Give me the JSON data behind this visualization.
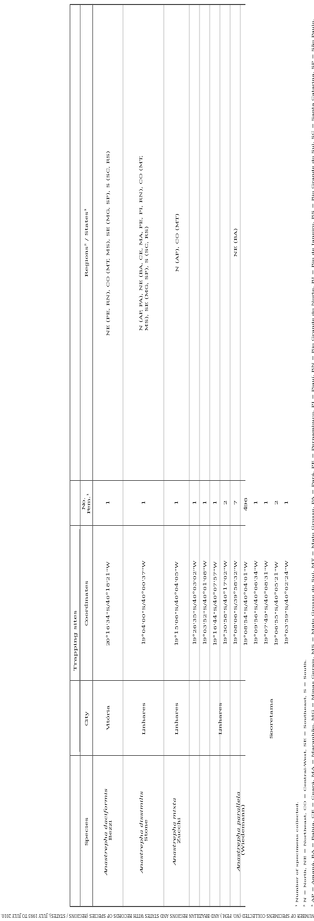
{
  "title": "NUMBER OF SPECIMENS COLLECTED (NO. FEM.) AND BRAZILIAN REGIONS AND STATES WITH RECORDS OF SPECIES (REGIONS / STATES), JULY 1993 TO JULY 2010.",
  "col_header_trapping": "Trapping sites",
  "col_headers": [
    "Species",
    "City",
    "Coordinates",
    "No.\nFem.¹",
    "Regions² / States³"
  ],
  "rows": [
    {
      "species_it": "Anastrepha daciformis",
      "author": " Bezzi",
      "city": "Vitória",
      "coord": "20°16'34\"S/40°18'21\"W",
      "nf": "1",
      "region": "NE (PE, RN), CO (MT, MS), SE (MG, SP), S (SC, RS)"
    },
    {
      "species_it": "Anastrepha dissimilis",
      "author": " Stone",
      "city": "Linhares",
      "coord": "19°04'00\"S/40°00'37\"W",
      "nf": "1",
      "region": "N (AP, PA), NE (BA, CE, MA, PE, PI, RN), CO (MT,\nMS), SE (MG, SP), S (SC, RS)"
    },
    {
      "species_it": "Anastrepha mixta",
      "author": " Zucchi",
      "city": "Linhares",
      "coord": "19°15'06\"S/40°04'05\"W",
      "nf": "1",
      "region": "N (AP), CO (MT)"
    },
    {
      "species_it": "Anastrepha parallela",
      "author": " (Wiedemann)",
      "city": "",
      "coord": "19°26'35\"S/40°03'02\"W",
      "nf": "1",
      "region": ""
    },
    {
      "species_it": "",
      "author": "",
      "city": "",
      "coord": "19°03'52\"S/40°01'08\"W",
      "nf": "1",
      "region": ""
    },
    {
      "species_it": "",
      "author": "",
      "city": "",
      "coord": "19°16'44\"S/40°07'57\"W",
      "nf": "1",
      "region": ""
    },
    {
      "species_it": "",
      "author": "",
      "city": "Linhares",
      "coord": "19°30'58\"S/40°17'02\"W",
      "nf": "2",
      "region": "NE (BA)"
    },
    {
      "species_it": "",
      "author": "",
      "city": "",
      "coord": "19°08'06\"S/39°58'32\"W",
      "nf": "7",
      "region": ""
    },
    {
      "species_it": "",
      "author": "",
      "city": "",
      "coord": "19°08'54\"S/40°04'01\"W",
      "nf": "496",
      "region": ""
    },
    {
      "species_it": "",
      "author": "",
      "city": "Sooretama",
      "coord": "19°09'56\"S/40°06'34\"W",
      "nf": "1",
      "region": ""
    },
    {
      "species_it": "",
      "author": "",
      "city": "",
      "coord": "19°07'49\"S/40°08'31\"W",
      "nf": "1",
      "region": ""
    },
    {
      "species_it": "",
      "author": "",
      "city": "",
      "coord": "19°06'55\"S/40°05'21\"W",
      "nf": "2",
      "region": ""
    },
    {
      "species_it": "",
      "author": "",
      "city": "",
      "coord": "19°03'59\"S/40°02'24\"W",
      "nf": "1",
      "region": ""
    }
  ],
  "footnote1": "¹ Number of specimens collected.",
  "footnote2": "² N = North, NE = Northeast, CO = Central-West, SE = Southeast, S = South.",
  "footnote3": "³ AP = Amapá, BA = Bahia, CE = Ceará, MA = Maranhão, MG = Minas Gerais, MS = Mato Grosso do Sul, MT = Mato Grosso, PA = Pará, PE = Pernambuco, PI = Piauí, RN = Rio Grande do Norte, RJ = Rio de Janeiro, RS = Rio Grande do Sul, SC = Santa Catarina, SP = São Paulo.",
  "bg_color": "#ffffff",
  "text_color": "#1a1a1a",
  "line_color": "#555555"
}
